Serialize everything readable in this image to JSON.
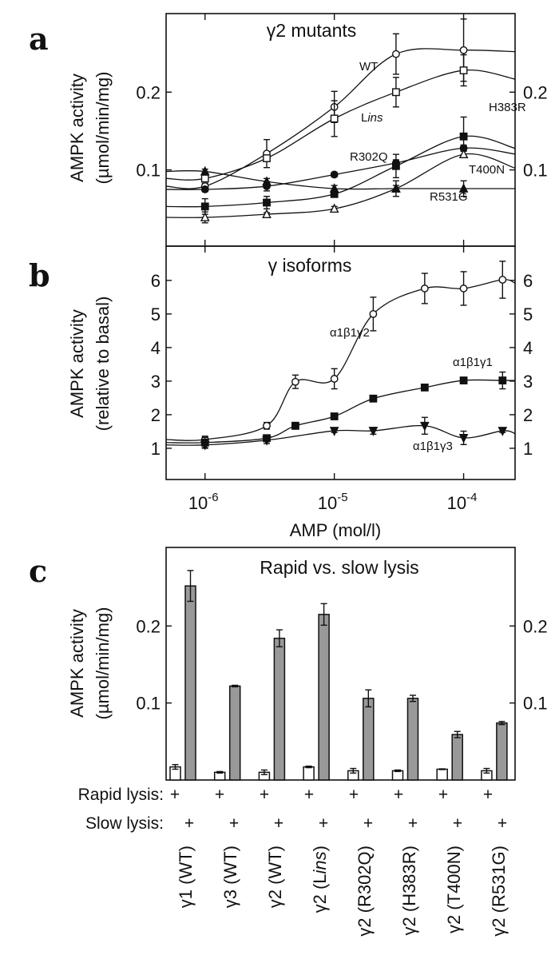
{
  "chart_data": [
    {
      "panel_label": "a",
      "type": "line",
      "title": "γ2 mutants",
      "ylabel": [
        "AMPK activity",
        "(µmol/min/mg)"
      ],
      "xscale": "log",
      "xlim": [
        5e-07,
        0.00025
      ],
      "ylim": [
        0.002,
        0.301
      ],
      "yticks": [
        0.1,
        0.2
      ],
      "ytick_labels": [
        "0.1",
        "0.2"
      ],
      "xticks": [
        1e-06,
        1e-05,
        0.0001
      ],
      "right_axis_labels": true,
      "grid": false,
      "x": [
        1e-06,
        3e-06,
        1e-05,
        3e-05,
        0.0001
      ],
      "series": [
        {
          "name": "WT",
          "marker": "open-circle",
          "values": [
            0.079,
            0.121,
            0.181,
            0.249,
            0.254
          ],
          "errors": [
            0.004,
            0.018,
            0.02,
            0.026,
            0.04
          ]
        },
        {
          "name": "Lins",
          "name_parts": [
            {
              "t": "L"
            },
            {
              "t": "ins",
              "i": true
            }
          ],
          "marker": "open-square",
          "values": [
            0.089,
            0.115,
            0.166,
            0.2,
            0.228
          ],
          "errors": [
            0.004,
            0.004,
            0.023,
            0.019,
            0.02
          ]
        },
        {
          "name": "H383R",
          "marker": "filled-square",
          "values": [
            0.053,
            0.058,
            0.069,
            0.105,
            0.143
          ],
          "errors": [
            0.01,
            0.008,
            0.004,
            0.015,
            0.025
          ]
        },
        {
          "name": "R302Q",
          "marker": "filled-circle",
          "values": [
            0.075,
            0.079,
            0.094,
            0.109,
            0.128
          ],
          "errors": [
            0.003,
            0.006,
            0.003,
            0.004,
            0.004
          ]
        },
        {
          "name": "T400N",
          "marker": "open-triangle-up",
          "values": [
            0.039,
            0.043,
            0.05,
            0.076,
            0.12
          ],
          "errors": [
            0.007,
            0.002,
            0.003,
            0.01,
            0.004
          ]
        },
        {
          "name": "R531G",
          "marker": "filled-triangle-up",
          "values": [
            0.098,
            0.085,
            0.076,
            0.076,
            0.076
          ],
          "errors": [
            0.003,
            0.004,
            0.004,
            0.004,
            0.01
          ]
        }
      ]
    },
    {
      "panel_label": "b",
      "type": "line",
      "title": "γ isoforms",
      "ylabel": [
        "AMPK activity",
        "(relative to basal)"
      ],
      "xlabel": "AMP (mol/l)",
      "xscale": "log",
      "xlim": [
        5e-07,
        0.00025
      ],
      "ylim": [
        0.07,
        7.02
      ],
      "yticks": [
        1,
        2,
        3,
        4,
        5,
        6
      ],
      "ytick_labels": [
        "1",
        "2",
        "3",
        "4",
        "5",
        "6"
      ],
      "xticks": [
        1e-06,
        1e-05,
        0.0001
      ],
      "xtick_labels": [
        {
          "base": "10",
          "exp": "-6"
        },
        {
          "base": "10",
          "exp": "-5"
        },
        {
          "base": "10",
          "exp": "-4"
        }
      ],
      "right_axis_labels": true,
      "grid": false,
      "x": [
        1e-06,
        3e-06,
        5e-06,
        1e-05,
        2e-05,
        5e-05,
        0.0001,
        0.0002
      ],
      "series": [
        {
          "name": "α1β1γ2",
          "marker": "open-circle",
          "values": [
            1.26,
            1.67,
            2.98,
            3.07,
            5.0,
            5.76,
            5.76,
            6.02
          ],
          "errors": [
            0.1,
            0.1,
            0.2,
            0.3,
            0.5,
            0.45,
            0.5,
            0.55
          ]
        },
        {
          "name": "α1β1γ1",
          "marker": "filled-square",
          "values": [
            1.17,
            1.3,
            1.67,
            1.95,
            2.48,
            2.81,
            3.02,
            3.02
          ],
          "errors": [
            0.15,
            0.1,
            0.1,
            0.05,
            0.05,
            0.05,
            0.05,
            0.25
          ]
        },
        {
          "name": "α1β1γ3",
          "marker": "filled-triangle-down",
          "values": [
            1.1,
            1.24,
            null,
            1.52,
            1.52,
            1.67,
            1.31,
            1.52
          ],
          "errors": [
            0.1,
            0.1,
            null,
            0.05,
            0.1,
            0.25,
            0.2,
            0.05
          ]
        }
      ]
    },
    {
      "panel_label": "c",
      "type": "bar",
      "title": "Rapid vs. slow lysis",
      "ylabel": [
        "AMPK activity",
        "(µmol/min/mg)"
      ],
      "ylim": [
        0,
        0.302
      ],
      "yticks": [
        0.1,
        0.2
      ],
      "ytick_labels": [
        "0.1",
        "0.2"
      ],
      "right_axis_labels": true,
      "grid": false,
      "row_labels": [
        "Rapid lysis:",
        "Slow lysis:"
      ],
      "plus_sign": "+",
      "categories": [
        [
          {
            "t": "γ1 (WT)"
          }
        ],
        [
          {
            "t": "γ3 (WT)"
          }
        ],
        [
          {
            "t": "γ2 (WT)"
          }
        ],
        [
          {
            "t": "γ2 (L"
          },
          {
            "t": "ins",
            "i": true
          },
          {
            "t": ")"
          }
        ],
        [
          {
            "t": "γ2 (R302Q)"
          }
        ],
        [
          {
            "t": "γ2 (H383R)"
          }
        ],
        [
          {
            "t": "γ2 (T400N)"
          }
        ],
        [
          {
            "t": "γ2 (R531G)"
          }
        ]
      ],
      "series": [
        {
          "name": "Rapid lysis",
          "color": "#ffffff",
          "values": [
            0.017,
            0.01,
            0.01,
            0.017,
            0.012,
            0.012,
            0.014,
            0.012
          ],
          "errors": [
            0.003,
            0.001,
            0.003,
            0.001,
            0.003,
            0.001,
            0.0005,
            0.003
          ]
        },
        {
          "name": "Slow lysis",
          "color": "#999999",
          "values": [
            0.252,
            0.122,
            0.184,
            0.215,
            0.106,
            0.106,
            0.059,
            0.074
          ],
          "errors": [
            0.02,
            0.001,
            0.011,
            0.014,
            0.011,
            0.004,
            0.004,
            0.002
          ]
        }
      ]
    }
  ]
}
